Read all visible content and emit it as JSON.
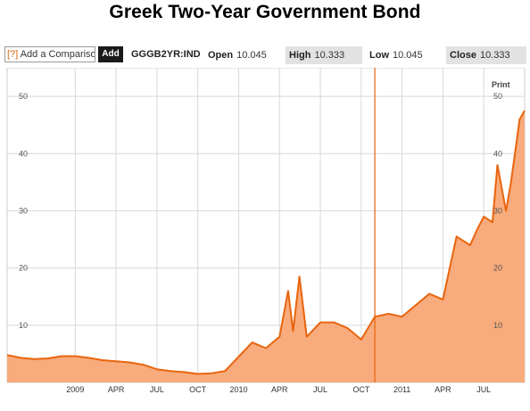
{
  "page": {
    "title": "Greek Two-Year Government Bond"
  },
  "toolbar": {
    "compare_icon": "[?]",
    "compare_placeholder": "Add a Comparison",
    "add_label": "Add",
    "ticker": "GGGB2YR:IND",
    "open_label": "Open",
    "open_value": "10.045",
    "high_label": "High",
    "high_value": "10.333",
    "low_label": "Low",
    "low_value": "10.045",
    "close_label": "Close",
    "close_value": "10.333"
  },
  "chart": {
    "print_label": "Print"
  },
  "colors": {
    "line": "#e8650e",
    "fill": "#f8ab7c",
    "marker": "#e8650e",
    "grid": "#d8d8d8"
  },
  "chart_data": {
    "type": "area",
    "title": "Greek Two-Year Government Bond",
    "xlabel": "",
    "ylabel": "",
    "ylim": [
      0,
      55
    ],
    "y_ticks": [
      10,
      20,
      30,
      40,
      50
    ],
    "y_axis_labels": "both sides",
    "x_tick_labels": [
      "2009",
      "APR",
      "JUL",
      "OCT",
      "2010",
      "APR",
      "JUL",
      "OCT",
      "2011",
      "APR",
      "JUL"
    ],
    "x_tick_dates": [
      "2009-01",
      "2009-04",
      "2009-07",
      "2009-10",
      "2010-01",
      "2010-04",
      "2010-07",
      "2010-10",
      "2011-01",
      "2011-04",
      "2011-07"
    ],
    "x_range": [
      "2008-08",
      "2011-10"
    ],
    "grid": true,
    "marker_date": "2010-11",
    "series": [
      {
        "x": [
          "2008-08",
          "2008-09",
          "2008-10",
          "2008-11",
          "2008-12",
          "2009-01",
          "2009-02",
          "2009-03",
          "2009-04",
          "2009-05",
          "2009-06",
          "2009-07",
          "2009-08",
          "2009-09",
          "2009-10",
          "2009-11",
          "2009-12",
          "2010-01",
          "2010-02",
          "2010-03",
          "2010-04",
          "2010-04-20",
          "2010-05",
          "2010-05-15",
          "2010-06",
          "2010-07",
          "2010-08",
          "2010-09",
          "2010-10",
          "2010-11",
          "2010-12",
          "2011-01",
          "2011-02",
          "2011-03",
          "2011-04",
          "2011-05",
          "2011-06",
          "2011-06-15",
          "2011-07",
          "2011-07-20",
          "2011-08",
          "2011-08-20",
          "2011-09",
          "2011-09-20",
          "2011-10"
        ],
        "values": [
          4.8,
          4.3,
          4.1,
          4.2,
          4.6,
          4.6,
          4.3,
          3.9,
          3.7,
          3.5,
          3.1,
          2.3,
          2.0,
          1.8,
          1.5,
          1.6,
          2.0,
          4.5,
          7.0,
          6.0,
          8.0,
          16.0,
          9.0,
          18.5,
          8.0,
          10.5,
          10.5,
          9.5,
          7.5,
          11.5,
          12.0,
          11.5,
          13.5,
          15.5,
          14.5,
          25.5,
          24.0,
          26.5,
          29.0,
          28.0,
          38.0,
          30.0,
          35.0,
          46.0,
          47.5
        ]
      }
    ]
  }
}
